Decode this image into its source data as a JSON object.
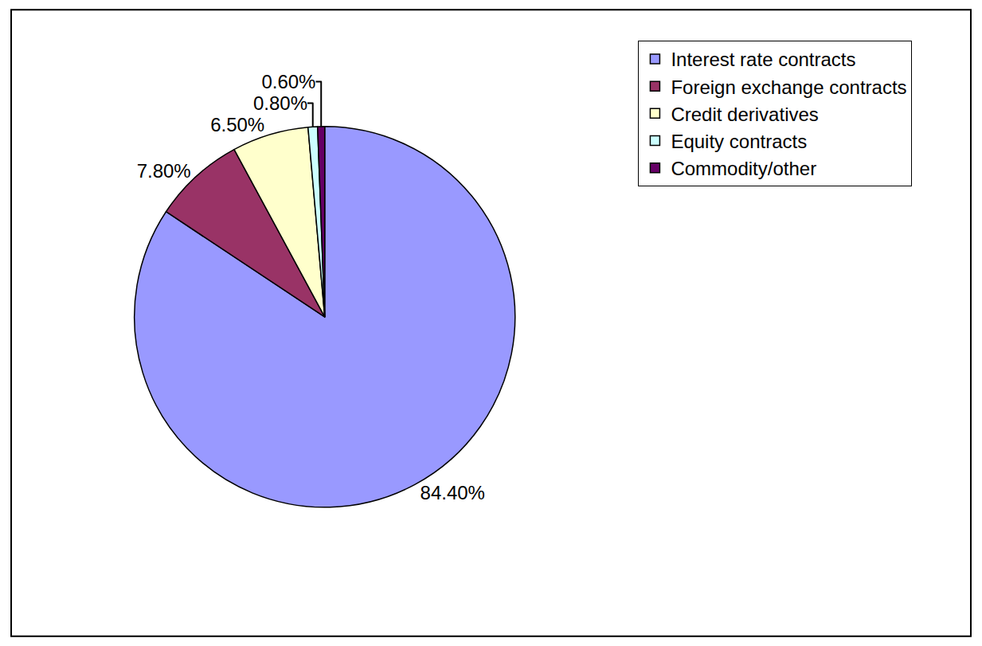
{
  "chart_data": {
    "type": "pie",
    "categories": [
      "Interest rate contracts",
      "Foreign exchange contracts",
      "Credit derivatives",
      "Equity contracts",
      "Commodity/other"
    ],
    "values": [
      84.4,
      7.8,
      6.5,
      0.8,
      0.6
    ],
    "value_labels": [
      "84.40%",
      "7.80%",
      "6.50%",
      "0.80%",
      "0.60%"
    ],
    "colors": [
      "#9999ff",
      "#993366",
      "#ffffcc",
      "#ccffff",
      "#660066"
    ],
    "data_labels": true,
    "legend": "right"
  }
}
